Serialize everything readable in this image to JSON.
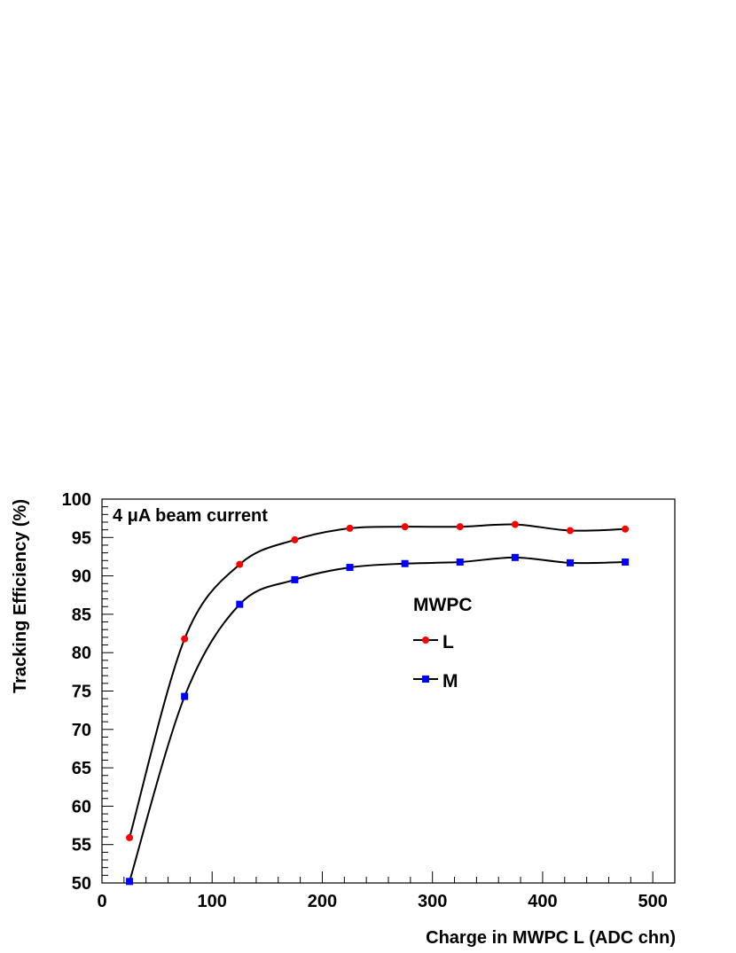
{
  "chart_data": {
    "type": "line",
    "xlabel": "Charge in MWPC L (ADC chn)",
    "ylabel": "Tracking Efficiency (%)",
    "xlim": [
      0,
      520
    ],
    "ylim": [
      50,
      100
    ],
    "xticks": [
      0,
      100,
      200,
      300,
      400,
      500
    ],
    "yticks": [
      50,
      55,
      60,
      65,
      70,
      75,
      80,
      85,
      90,
      95,
      100
    ],
    "xtick_labels": [
      "0",
      "100",
      "200",
      "300",
      "400",
      "500"
    ],
    "ytick_labels": [
      "50",
      "55",
      "60",
      "65",
      "70",
      "75",
      "80",
      "85",
      "90",
      "95",
      "100"
    ],
    "annotation": "4 μA beam current",
    "legend": {
      "title": "MWPC",
      "placement": "center-right"
    },
    "grid": false,
    "series": [
      {
        "name": "L",
        "marker": "circle",
        "color": "#ff0000",
        "x": [
          25,
          75,
          125,
          175,
          225,
          275,
          325,
          375,
          425,
          475
        ],
        "y": [
          55.9,
          81.8,
          91.5,
          94.7,
          96.2,
          96.4,
          96.4,
          96.7,
          95.9,
          96.1
        ]
      },
      {
        "name": "M",
        "marker": "square",
        "color": "#0000ff",
        "x": [
          25,
          75,
          125,
          175,
          225,
          275,
          325,
          375,
          425,
          475
        ],
        "y": [
          50.2,
          74.3,
          86.3,
          89.5,
          91.1,
          91.6,
          91.8,
          92.4,
          91.7,
          91.8
        ]
      }
    ]
  }
}
